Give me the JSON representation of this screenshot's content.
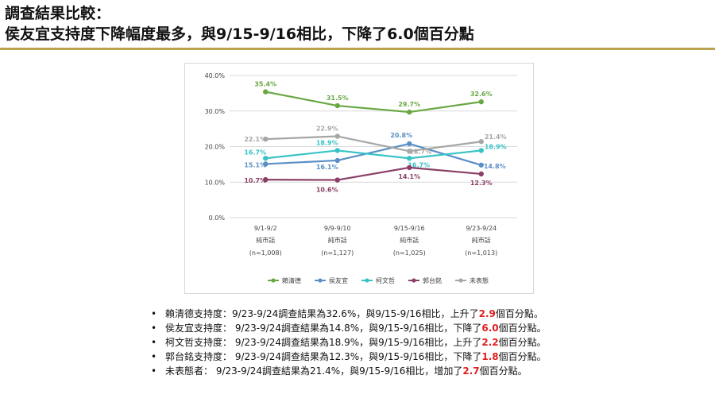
{
  "header": {
    "line1": "調查結果比較：",
    "line2": "侯友宜支持度下降幅度最多，與9/15-9/16相比，下降了6.0個百分點"
  },
  "chart_data": {
    "type": "line",
    "categories": [
      "9/1-9/2",
      "9/9-9/10",
      "9/15-9/16",
      "9/23-9/24"
    ],
    "category_sublabels": [
      "純市話",
      "純市話",
      "純市話",
      "純市話"
    ],
    "category_samples": [
      "(n=1,008)",
      "(n=1,127)",
      "(n=1,025)",
      "(n=1,013)"
    ],
    "ylim": [
      0,
      40
    ],
    "yticks": [
      "0.0%",
      "10.0%",
      "20.0%",
      "30.0%",
      "40.0%"
    ],
    "grid": true,
    "legend_position": "bottom",
    "series": [
      {
        "name": "賴清德",
        "color": "#6aa843",
        "values": [
          35.4,
          31.5,
          29.7,
          32.6
        ],
        "labels": [
          "35.4%",
          "31.5%",
          "29.7%",
          "32.6%"
        ]
      },
      {
        "name": "侯友宜",
        "color": "#5a8fc6",
        "values": [
          15.1,
          16.1,
          20.8,
          14.8
        ],
        "labels": [
          "15.1%",
          "16.1%",
          "20.8%",
          "14.8%"
        ]
      },
      {
        "name": "柯文哲",
        "color": "#37c3c6",
        "values": [
          16.7,
          18.9,
          16.7,
          18.9
        ],
        "labels": [
          "16.7%",
          "18.9%",
          "16.7%",
          "18.9%"
        ]
      },
      {
        "name": "郭台銘",
        "color": "#8b3f67",
        "values": [
          10.7,
          10.6,
          14.1,
          12.3
        ],
        "labels": [
          "10.7%",
          "10.6%",
          "14.1%",
          "12.3%"
        ]
      },
      {
        "name": "未表態",
        "color": "#a6a6a6",
        "values": [
          22.1,
          22.9,
          18.7,
          21.4
        ],
        "labels": [
          "22.1%",
          "22.9%",
          "18.7%",
          "21.4%"
        ]
      }
    ]
  },
  "bullets": [
    {
      "marker": "•",
      "pre": "賴清德支持度：9/23-9/24調查結果為32.6%，與9/15-9/16相比，上升了",
      "hl": "2.9",
      "post": "個百分點。"
    },
    {
      "marker": "•",
      "pre": "侯友宜支持度： 9/23-9/24調查結果為14.8%，與9/15-9/16相比，下降了",
      "hl": "6.0",
      "post": "個百分點。"
    },
    {
      "marker": "•",
      "pre": "柯文哲支持度： 9/23-9/24調查結果為18.9%，與9/15-9/16相比，上升了",
      "hl": "2.2",
      "post": "個百分點。"
    },
    {
      "marker": "•",
      "pre": "郭台銘支持度： 9/23-9/24調查結果為12.3%，與9/15-9/16相比，下降了",
      "hl": "1.8",
      "post": "個百分點。"
    },
    {
      "marker": "•",
      "pre": "未表態者： 9/23-9/24調查結果為21.4%，與9/15-9/16相比，增加了",
      "hl": "2.7",
      "post": "個百分點。"
    }
  ]
}
